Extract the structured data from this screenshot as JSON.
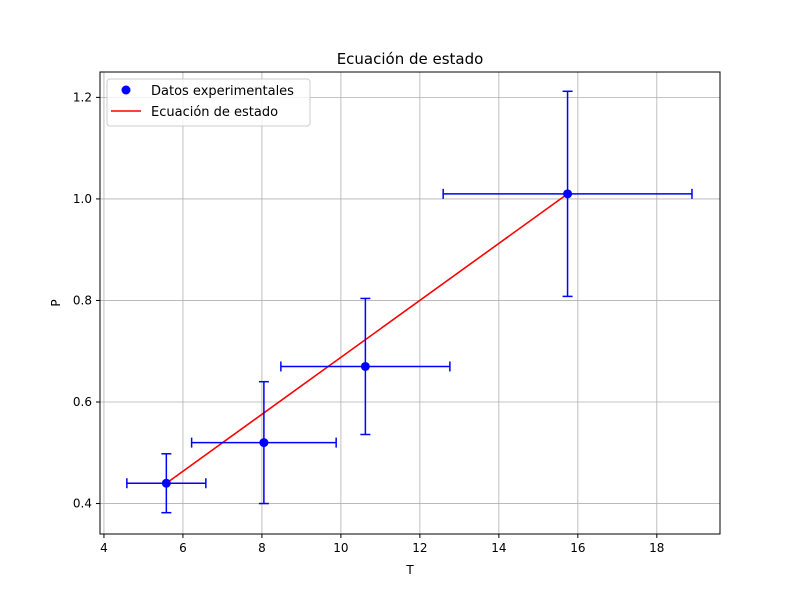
{
  "chart_data": {
    "type": "scatter",
    "title": "Ecuación de estado",
    "xlabel": "T",
    "ylabel": "P",
    "xlim": [
      3.9,
      19.6
    ],
    "ylim": [
      0.34,
      1.25
    ],
    "x_ticks": [
      4,
      6,
      8,
      10,
      12,
      14,
      16,
      18
    ],
    "y_ticks": [
      0.4,
      0.6,
      0.8,
      1.0,
      1.2
    ],
    "x_tick_labels": [
      "4",
      "6",
      "8",
      "10",
      "12",
      "14",
      "16",
      "18"
    ],
    "y_tick_labels": [
      "0.4",
      "0.6",
      "0.8",
      "1.0",
      "1.2"
    ],
    "grid": true,
    "legend_position": "top-left",
    "series": [
      {
        "name": "Datos experimentales",
        "kind": "scatter-errorbar",
        "color": "#0000ff",
        "points": [
          {
            "x": 5.58,
            "y": 0.44,
            "xerr": 1.0,
            "yerr": 0.058
          },
          {
            "x": 8.05,
            "y": 0.52,
            "xerr": 1.83,
            "yerr": 0.12
          },
          {
            "x": 10.62,
            "y": 0.67,
            "xerr": 2.14,
            "yerr": 0.134
          },
          {
            "x": 15.74,
            "y": 1.01,
            "xerr": 3.15,
            "yerr": 0.202
          }
        ]
      },
      {
        "name": "Ecuación de estado",
        "kind": "line",
        "color": "#ff0000",
        "x": [
          5.58,
          15.74
        ],
        "y": [
          0.44,
          1.01
        ]
      }
    ]
  }
}
